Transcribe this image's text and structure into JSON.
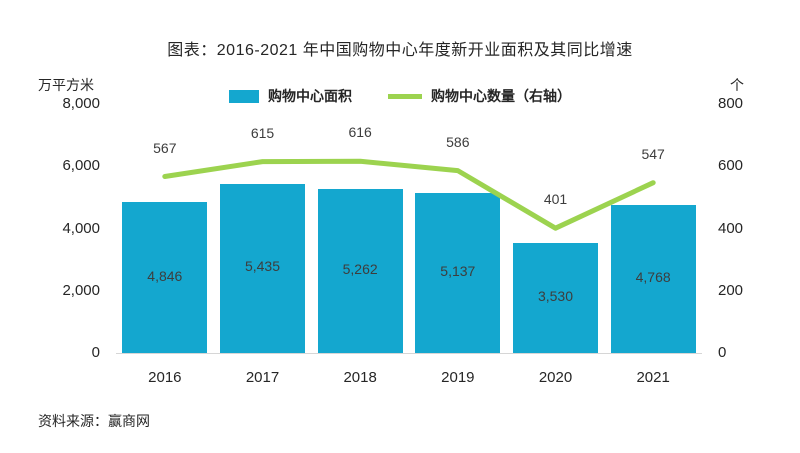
{
  "title": "图表：2016-2021 年中国购物中心年度新开业面积及其同比增速",
  "source": "资料来源：赢商网",
  "chart_data": {
    "type": "bar",
    "subtype": "bar+line-combo",
    "categories": [
      "2016",
      "2017",
      "2018",
      "2019",
      "2020",
      "2021"
    ],
    "series": [
      {
        "name": "购物中心面积",
        "type": "bar",
        "axis": "left",
        "values": [
          4846,
          5435,
          5262,
          5137,
          3530,
          4768
        ],
        "labels": [
          "4,846",
          "5,435",
          "5,262",
          "5,137",
          "3,530",
          "4,768"
        ],
        "color": "#14A7CF"
      },
      {
        "name": "购物中心数量（右轴）",
        "type": "line",
        "axis": "right",
        "values": [
          567,
          615,
          616,
          586,
          401,
          547
        ],
        "labels": [
          "567",
          "615",
          "616",
          "586",
          "401",
          "547"
        ],
        "color": "#9CD34F"
      }
    ],
    "left_axis": {
      "unit": "万平方米",
      "min": 0,
      "max": 8000,
      "ticks": [
        "0",
        "2,000",
        "4,000",
        "6,000",
        "8,000"
      ]
    },
    "right_axis": {
      "unit": "个",
      "min": 0,
      "max": 800,
      "ticks": [
        "0",
        "200",
        "400",
        "600",
        "800"
      ]
    },
    "grid": "off",
    "legend_position": "top-center",
    "background": "#ffffff"
  }
}
